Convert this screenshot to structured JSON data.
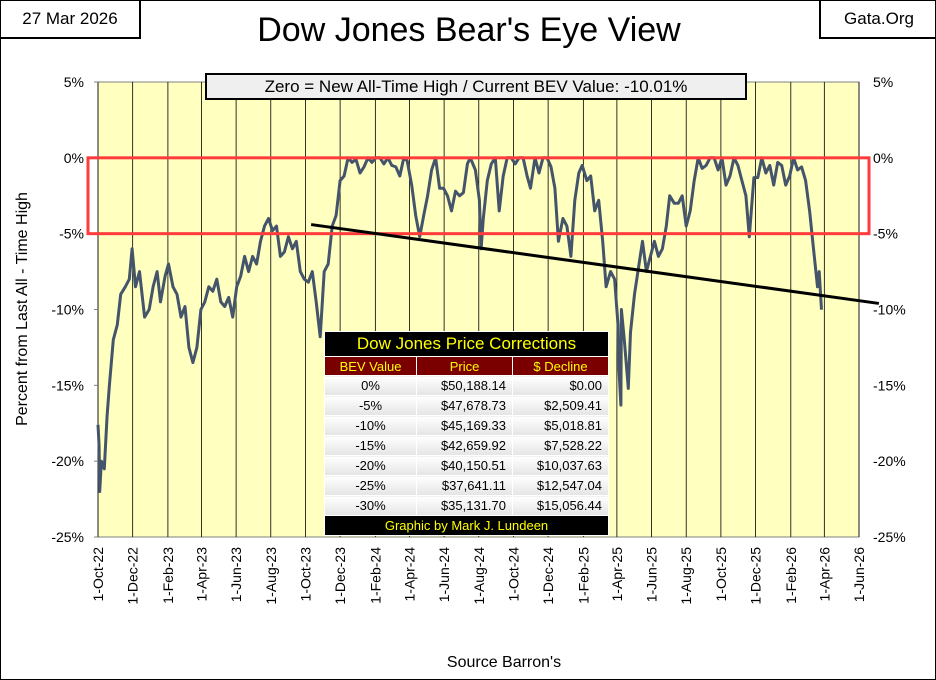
{
  "header": {
    "date": "27 Mar 2026",
    "site": "Gata.Org",
    "note": "Zero = New All-Time High / Current BEV Value:  -10.01%",
    "source": "Source Barron's"
  },
  "chart_data": {
    "type": "line",
    "title": "Dow Jones Bear's Eye View",
    "ylabel": "Percent from Last All - Time  High",
    "ylim": [
      -25,
      5
    ],
    "yticks": [
      {
        "value": 5,
        "label": "5%"
      },
      {
        "value": 0,
        "label": "0%"
      },
      {
        "value": -5,
        "label": "-5%"
      },
      {
        "value": -10,
        "label": "-10%"
      },
      {
        "value": -15,
        "label": "-15%"
      },
      {
        "value": -20,
        "label": "-20%"
      },
      {
        "value": -25,
        "label": "-25%"
      }
    ],
    "xlim": [
      "2022-10-01",
      "2026-06-01"
    ],
    "xticks": [
      {
        "value": "2022-10-01",
        "label": "1-Oct-22"
      },
      {
        "value": "2022-12-01",
        "label": "1-Dec-22"
      },
      {
        "value": "2023-02-01",
        "label": "1-Feb-23"
      },
      {
        "value": "2023-04-01",
        "label": "1-Apr-23"
      },
      {
        "value": "2023-06-01",
        "label": "1-Jun-23"
      },
      {
        "value": "2023-08-01",
        "label": "1-Aug-23"
      },
      {
        "value": "2023-10-01",
        "label": "1-Oct-23"
      },
      {
        "value": "2023-12-01",
        "label": "1-Dec-23"
      },
      {
        "value": "2024-02-01",
        "label": "1-Feb-24"
      },
      {
        "value": "2024-04-01",
        "label": "1-Apr-24"
      },
      {
        "value": "2024-06-01",
        "label": "1-Jun-24"
      },
      {
        "value": "2024-08-01",
        "label": "1-Aug-24"
      },
      {
        "value": "2024-10-01",
        "label": "1-Oct-24"
      },
      {
        "value": "2024-12-01",
        "label": "1-Dec-24"
      },
      {
        "value": "2025-02-01",
        "label": "1-Feb-25"
      },
      {
        "value": "2025-04-01",
        "label": "1-Apr-25"
      },
      {
        "value": "2025-06-01",
        "label": "1-Jun-25"
      },
      {
        "value": "2025-08-01",
        "label": "1-Aug-25"
      },
      {
        "value": "2025-10-01",
        "label": "1-Oct-25"
      },
      {
        "value": "2025-12-01",
        "label": "1-Dec-25"
      },
      {
        "value": "2026-02-01",
        "label": "1-Feb-26"
      },
      {
        "value": "2026-04-01",
        "label": "1-Apr-26"
      },
      {
        "value": "2026-06-01",
        "label": "1-Jun-26"
      }
    ],
    "grid": true,
    "background": "#ffffc0",
    "color": "#44546a",
    "band": {
      "values": [
        0,
        -5
      ],
      "color": "#ff3b3b"
    },
    "trendline": {
      "x": [
        "2023-10-11",
        "2026-07-06"
      ],
      "values": [
        -4.4,
        -9.6
      ],
      "color": "#000000"
    },
    "x": [
      "2022-10-01",
      "2022-10-03",
      "2022-10-04",
      "2022-10-07",
      "2022-10-12",
      "2022-10-17",
      "2022-10-21",
      "2022-10-28",
      "2022-11-04",
      "2022-11-10",
      "2022-11-18",
      "2022-11-25",
      "2022-11-30",
      "2022-12-06",
      "2022-12-13",
      "2022-12-22",
      "2022-12-30",
      "2023-01-06",
      "2023-01-13",
      "2023-01-19",
      "2023-01-27",
      "2023-02-02",
      "2023-02-10",
      "2023-02-17",
      "2023-02-24",
      "2023-03-03",
      "2023-03-10",
      "2023-03-17",
      "2023-03-24",
      "2023-03-31",
      "2023-04-07",
      "2023-04-14",
      "2023-04-21",
      "2023-04-28",
      "2023-05-05",
      "2023-05-12",
      "2023-05-19",
      "2023-05-26",
      "2023-06-02",
      "2023-06-09",
      "2023-06-16",
      "2023-06-23",
      "2023-06-30",
      "2023-07-07",
      "2023-07-14",
      "2023-07-21",
      "2023-07-28",
      "2023-08-04",
      "2023-08-11",
      "2023-08-18",
      "2023-08-25",
      "2023-09-01",
      "2023-09-08",
      "2023-09-15",
      "2023-09-22",
      "2023-09-29",
      "2023-10-06",
      "2023-10-13",
      "2023-10-20",
      "2023-10-27",
      "2023-11-03",
      "2023-11-10",
      "2023-11-17",
      "2023-11-24",
      "2023-12-01",
      "2023-12-08",
      "2023-12-15",
      "2023-12-22",
      "2023-12-29",
      "2024-01-05",
      "2024-01-12",
      "2024-01-19",
      "2024-01-26",
      "2024-02-02",
      "2024-02-09",
      "2024-02-16",
      "2024-02-23",
      "2024-03-01",
      "2024-03-08",
      "2024-03-15",
      "2024-03-22",
      "2024-03-28",
      "2024-04-05",
      "2024-04-12",
      "2024-04-19",
      "2024-04-26",
      "2024-05-03",
      "2024-05-10",
      "2024-05-17",
      "2024-05-24",
      "2024-05-31",
      "2024-06-07",
      "2024-06-14",
      "2024-06-21",
      "2024-06-28",
      "2024-07-05",
      "2024-07-12",
      "2024-07-17",
      "2024-07-26",
      "2024-08-02",
      "2024-08-05",
      "2024-08-09",
      "2024-08-16",
      "2024-08-23",
      "2024-08-30",
      "2024-09-06",
      "2024-09-13",
      "2024-09-20",
      "2024-09-27",
      "2024-10-04",
      "2024-10-11",
      "2024-10-18",
      "2024-10-25",
      "2024-10-31",
      "2024-11-08",
      "2024-11-15",
      "2024-11-22",
      "2024-11-29",
      "2024-12-06",
      "2024-12-13",
      "2024-12-19",
      "2024-12-27",
      "2025-01-03",
      "2025-01-10",
      "2025-01-17",
      "2025-01-24",
      "2025-01-30",
      "2025-02-07",
      "2025-02-14",
      "2025-02-21",
      "2025-02-28",
      "2025-03-07",
      "2025-03-13",
      "2025-03-21",
      "2025-03-28",
      "2025-04-03",
      "2025-04-04",
      "2025-04-08",
      "2025-04-09",
      "2025-04-14",
      "2025-04-21",
      "2025-04-25",
      "2025-05-02",
      "2025-05-12",
      "2025-05-16",
      "2025-05-23",
      "2025-05-30",
      "2025-06-06",
      "2025-06-13",
      "2025-06-20",
      "2025-06-27",
      "2025-07-03",
      "2025-07-11",
      "2025-07-18",
      "2025-07-25",
      "2025-08-01",
      "2025-08-08",
      "2025-08-15",
      "2025-08-22",
      "2025-08-29",
      "2025-09-05",
      "2025-09-12",
      "2025-09-19",
      "2025-09-26",
      "2025-10-03",
      "2025-10-10",
      "2025-10-17",
      "2025-10-24",
      "2025-10-31",
      "2025-11-07",
      "2025-11-14",
      "2025-11-20",
      "2025-11-28",
      "2025-12-05",
      "2025-12-12",
      "2025-12-19",
      "2025-12-26",
      "2026-01-02",
      "2026-01-09",
      "2026-01-16",
      "2026-01-23",
      "2026-01-30",
      "2026-02-06",
      "2026-02-13",
      "2026-02-20",
      "2026-02-27",
      "2026-03-06",
      "2026-03-13",
      "2026-03-20",
      "2026-03-23",
      "2026-03-27"
    ],
    "values": [
      -17.6,
      -19,
      -22,
      -20,
      -20.5,
      -17,
      -15,
      -12,
      -11,
      -9,
      -8.5,
      -8,
      -6,
      -8.5,
      -7.5,
      -10.5,
      -10,
      -8.5,
      -7.5,
      -9.5,
      -7.8,
      -7,
      -8.5,
      -9,
      -10.5,
      -9.8,
      -12.5,
      -13.5,
      -12.5,
      -10,
      -9.5,
      -8.5,
      -8.8,
      -8,
      -9.5,
      -9.8,
      -9.2,
      -10.5,
      -8.5,
      -7.8,
      -6.5,
      -7.5,
      -6.5,
      -7,
      -5.5,
      -4.5,
      -4,
      -4.8,
      -4.5,
      -6.5,
      -6.2,
      -5.2,
      -6,
      -5.5,
      -7.5,
      -8,
      -8.2,
      -7.5,
      -9.5,
      -11.8,
      -7.5,
      -7,
      -4.5,
      -3.8,
      -1.5,
      -1.2,
      0,
      -0.3,
      -0.1,
      -1,
      -0.6,
      0,
      -0.3,
      0,
      0,
      -0.4,
      0,
      -0.5,
      -0.6,
      -1.2,
      0,
      -0.2,
      -1.8,
      -3.8,
      -5.2,
      -3.8,
      -2.5,
      -0.8,
      0,
      -2,
      -2,
      -2.5,
      -3.5,
      -2.2,
      -2.5,
      -2.3,
      -0.4,
      0,
      -0.8,
      -2.8,
      -6,
      -4,
      -1.5,
      -0.4,
      0,
      -3.5,
      -1.2,
      0,
      0,
      -0.4,
      0,
      0,
      -1.2,
      -2,
      0,
      -1,
      0,
      0,
      -0.6,
      -2,
      -5.5,
      -4,
      -4.5,
      -6.5,
      -2.8,
      -1,
      -0.5,
      -1.5,
      -1.2,
      -3.5,
      -2.8,
      -5.5,
      -8.5,
      -7.5,
      -8,
      -11,
      -13.5,
      -16.3,
      -10,
      -12,
      -15.2,
      -11.5,
      -9,
      -6.5,
      -5.5,
      -7.5,
      -6.5,
      -5.5,
      -6.5,
      -6,
      -4.5,
      -2.5,
      -3,
      -3,
      -2.5,
      -4.5,
      -3.5,
      -1.5,
      0,
      -0.7,
      -0.5,
      0,
      0,
      -0.8,
      0,
      -1.8,
      -1.2,
      0,
      -0.5,
      -1.5,
      -2.5,
      -5.2,
      -1.3,
      -1.3,
      0,
      -1,
      -0.5,
      -1.8,
      -0.3,
      -0.5,
      -1.8,
      -1.2,
      0,
      -0.8,
      -0.6,
      -1.5,
      -3.5,
      -6,
      -8.5,
      -7.5,
      -10.01
    ]
  },
  "table": {
    "title": "Dow Jones Price Corrections",
    "columns": [
      "BEV Value",
      "Price",
      "$ Decline"
    ],
    "rows": [
      [
        "0%",
        "$50,188.14",
        "$0.00"
      ],
      [
        "-5%",
        "$47,678.73",
        "$2,509.41"
      ],
      [
        "-10%",
        "$45,169.33",
        "$5,018.81"
      ],
      [
        "-15%",
        "$42,659.92",
        "$7,528.22"
      ],
      [
        "-20%",
        "$40,150.51",
        "$10,037.63"
      ],
      [
        "-25%",
        "$37,641.11",
        "$12,547.04"
      ],
      [
        "-30%",
        "$35,131.70",
        "$15,056.44"
      ]
    ],
    "footer": "Graphic by Mark J. Lundeen"
  }
}
